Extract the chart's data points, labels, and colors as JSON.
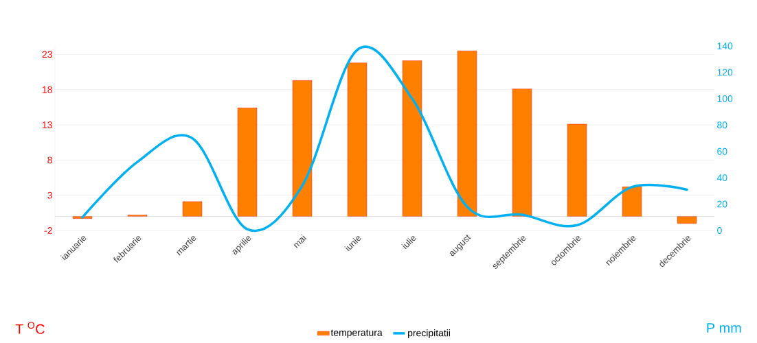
{
  "chart_data": {
    "type": "bar",
    "categories": [
      "ianuarie",
      "februarie",
      "martie",
      "aprilie",
      "mai",
      "iunie",
      "iulie",
      "august",
      "septembrie",
      "octombrie",
      "noiembrie",
      "decembrie"
    ],
    "series": [
      {
        "name": "temperatura",
        "color": "#ff8000",
        "values": [
          -0.3,
          0.2,
          2.1,
          15.4,
          19.3,
          21.8,
          22.1,
          23.5,
          18.1,
          13.1,
          4.2,
          -1.0
        ]
      },
      {
        "name": "precipitatii",
        "type": "line",
        "axis": "y2",
        "color": "#00b0f0",
        "values": [
          10,
          52,
          70,
          1,
          34,
          137,
          100,
          18,
          12,
          4,
          33,
          31
        ]
      }
    ],
    "annotations": [
      "T $^{O}$C",
      "P mm"
    ],
    "ylim": [
      -2,
      24.2
    ],
    "yticks": [
      -2,
      3,
      8,
      13,
      18,
      23
    ],
    "y2lim": [
      0,
      140
    ],
    "y2ticks": [
      0,
      20,
      40,
      60,
      80,
      100,
      120,
      140
    ],
    "grid": "y",
    "legend": "bottom"
  }
}
